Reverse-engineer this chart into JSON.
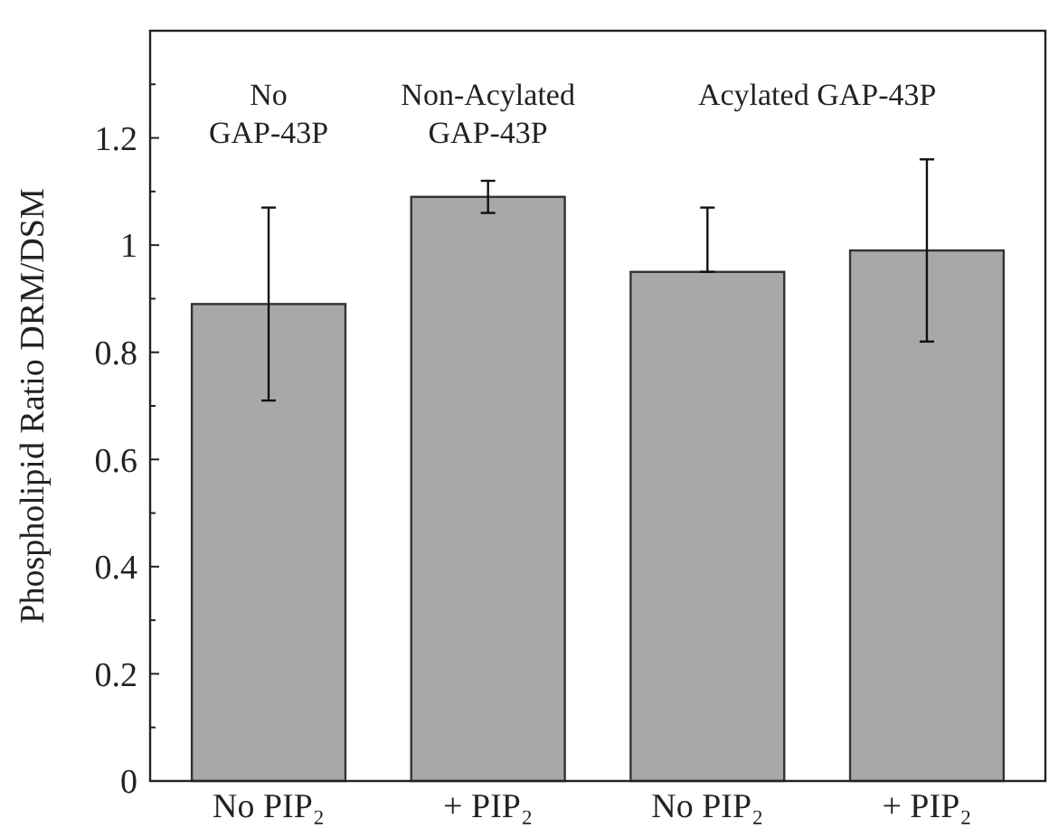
{
  "chart_data": {
    "type": "bar",
    "ylabel": "Phospholipid Ratio DRM/DSM",
    "categories": [
      "No PIP₂",
      "+ PIP₂",
      "No PIP₂",
      "+ PIP₂"
    ],
    "values": [
      0.89,
      1.09,
      0.95,
      0.99
    ],
    "errors": [
      [
        0.71,
        1.07
      ],
      [
        1.06,
        1.12
      ],
      [
        0.95,
        1.07
      ],
      [
        0.82,
        1.16
      ]
    ],
    "color": "#a8a8a8",
    "ylim": [
      0,
      1.4
    ],
    "yticks": [
      0,
      {
        "value": 0.1,
        "label": null
      },
      0.2,
      {
        "value": 0.3,
        "label": null
      },
      0.4,
      {
        "value": 0.5,
        "label": null
      },
      0.6,
      {
        "value": 0.7,
        "label": null
      },
      0.8,
      {
        "value": 0.9,
        "label": null
      },
      1,
      {
        "value": 1.1,
        "label": null
      },
      1.2,
      {
        "value": 1.3,
        "label": null
      }
    ],
    "annotations": [
      "No\nGAP-43P",
      "Non-Acylated\nGAP-43P",
      "Acylated GAP-43P"
    ],
    "grid": false
  }
}
